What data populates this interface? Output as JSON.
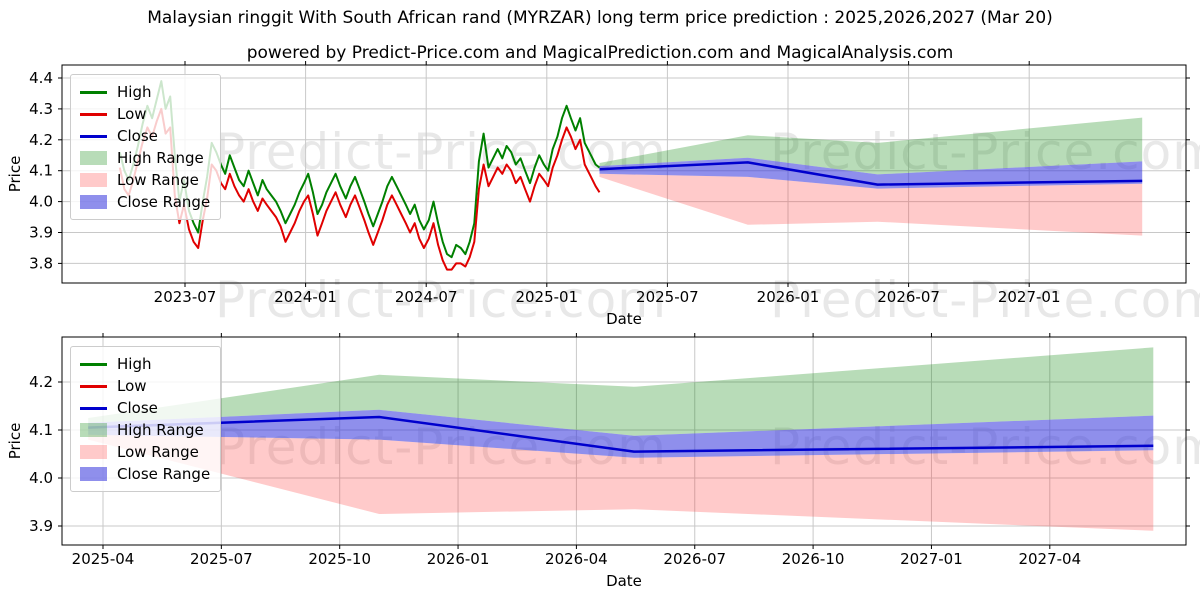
{
  "header": {
    "title": "Malaysian ringgit With South African rand (MYRZAR) long term price prediction : 2025,2026,2027 (Mar 20)",
    "subtitle": "powered by Predict-Price.com and MagicalPrediction.com and MagicalAnalysis.com"
  },
  "watermark": {
    "text": "Predict-Price.com"
  },
  "colors": {
    "high_line": "#008000",
    "low_line": "#e00000",
    "close_line": "#0000cd",
    "high_range_fill": "#008000",
    "high_range_opacity": 0.28,
    "low_range_fill": "#ff2a2a",
    "low_range_opacity": 0.25,
    "close_range_fill": "#3333dd",
    "close_range_opacity": 0.55,
    "grid": "#c8c8c8",
    "frame": "#000000"
  },
  "legend": {
    "items": [
      {
        "label": "High",
        "type": "line",
        "color": "#008000",
        "opacity": 1
      },
      {
        "label": "Low",
        "type": "line",
        "color": "#e00000",
        "opacity": 1
      },
      {
        "label": "Close",
        "type": "line",
        "color": "#0000cd",
        "opacity": 1
      },
      {
        "label": "High Range",
        "type": "patch",
        "color": "#008000",
        "opacity": 0.28
      },
      {
        "label": "Low Range",
        "type": "patch",
        "color": "#ff2a2a",
        "opacity": 0.25
      },
      {
        "label": "Close Range",
        "type": "patch",
        "color": "#3333dd",
        "opacity": 0.55
      }
    ]
  },
  "chart_data": [
    {
      "type": "line",
      "name": "history-and-forecast",
      "xlabel": "Date",
      "ylabel": "Price",
      "yticks": [
        4.4,
        4.3,
        4.2,
        4.1,
        4.0,
        3.9,
        3.8
      ],
      "ylim": [
        3.737,
        4.442
      ],
      "xticks": [
        "2023-07",
        "2024-01",
        "2024-07",
        "2025-01",
        "2025-07",
        "2026-01",
        "2026-07",
        "2027-01"
      ],
      "grid": true,
      "legend_position": "upper left",
      "history": {
        "series": [
          "date",
          "high",
          "low"
        ],
        "rows": [
          [
            "2023-03-24",
            4.16,
            4.11
          ],
          [
            "2023-03-31",
            4.1,
            4.04
          ],
          [
            "2023-04-07",
            4.07,
            4.02
          ],
          [
            "2023-04-14",
            4.12,
            4.07
          ],
          [
            "2023-04-21",
            4.18,
            4.13
          ],
          [
            "2023-04-28",
            4.25,
            4.19
          ],
          [
            "2023-05-05",
            4.31,
            4.24
          ],
          [
            "2023-05-12",
            4.27,
            4.21
          ],
          [
            "2023-05-19",
            4.33,
            4.26
          ],
          [
            "2023-05-26",
            4.39,
            4.3
          ],
          [
            "2023-06-02",
            4.3,
            4.22
          ],
          [
            "2023-06-09",
            4.34,
            4.24
          ],
          [
            "2023-06-16",
            4.15,
            4.02
          ],
          [
            "2023-06-23",
            4.0,
            3.93
          ],
          [
            "2023-06-30",
            4.07,
            3.99
          ],
          [
            "2023-07-07",
            3.97,
            3.91
          ],
          [
            "2023-07-14",
            3.93,
            3.87
          ],
          [
            "2023-07-21",
            3.9,
            3.85
          ],
          [
            "2023-07-28",
            4.0,
            3.94
          ],
          [
            "2023-08-04",
            4.08,
            4.01
          ],
          [
            "2023-08-11",
            4.19,
            4.12
          ],
          [
            "2023-08-18",
            4.16,
            4.1
          ],
          [
            "2023-08-25",
            4.12,
            4.06
          ],
          [
            "2023-09-01",
            4.09,
            4.04
          ],
          [
            "2023-09-08",
            4.15,
            4.09
          ],
          [
            "2023-09-15",
            4.11,
            4.05
          ],
          [
            "2023-09-22",
            4.07,
            4.02
          ],
          [
            "2023-09-29",
            4.05,
            4.0
          ],
          [
            "2023-10-06",
            4.1,
            4.04
          ],
          [
            "2023-10-13",
            4.06,
            4.0
          ],
          [
            "2023-10-20",
            4.02,
            3.97
          ],
          [
            "2023-10-27",
            4.07,
            4.01
          ],
          [
            "2023-11-03",
            4.04,
            3.99
          ],
          [
            "2023-11-10",
            4.02,
            3.97
          ],
          [
            "2023-11-17",
            4.0,
            3.95
          ],
          [
            "2023-11-24",
            3.97,
            3.92
          ],
          [
            "2023-12-01",
            3.93,
            3.87
          ],
          [
            "2023-12-08",
            3.96,
            3.9
          ],
          [
            "2023-12-15",
            3.99,
            3.93
          ],
          [
            "2023-12-22",
            4.03,
            3.97
          ],
          [
            "2023-12-29",
            4.06,
            4.0
          ],
          [
            "2024-01-05",
            4.09,
            4.02
          ],
          [
            "2024-01-12",
            4.03,
            3.96
          ],
          [
            "2024-01-19",
            3.96,
            3.89
          ],
          [
            "2024-01-26",
            3.99,
            3.93
          ],
          [
            "2024-02-02",
            4.03,
            3.97
          ],
          [
            "2024-02-09",
            4.06,
            4.0
          ],
          [
            "2024-02-16",
            4.09,
            4.03
          ],
          [
            "2024-02-23",
            4.05,
            3.99
          ],
          [
            "2024-03-01",
            4.01,
            3.95
          ],
          [
            "2024-03-08",
            4.05,
            3.99
          ],
          [
            "2024-03-15",
            4.08,
            4.02
          ],
          [
            "2024-03-22",
            4.04,
            3.98
          ],
          [
            "2024-03-29",
            4.0,
            3.94
          ],
          [
            "2024-04-05",
            3.96,
            3.9
          ],
          [
            "2024-04-12",
            3.92,
            3.86
          ],
          [
            "2024-04-19",
            3.96,
            3.9
          ],
          [
            "2024-04-26",
            4.0,
            3.94
          ],
          [
            "2024-05-03",
            4.05,
            3.99
          ],
          [
            "2024-05-10",
            4.08,
            4.02
          ],
          [
            "2024-05-17",
            4.05,
            3.99
          ],
          [
            "2024-05-24",
            4.02,
            3.96
          ],
          [
            "2024-05-31",
            3.99,
            3.93
          ],
          [
            "2024-06-07",
            3.96,
            3.9
          ],
          [
            "2024-06-14",
            3.99,
            3.93
          ],
          [
            "2024-06-21",
            3.94,
            3.88
          ],
          [
            "2024-06-28",
            3.91,
            3.85
          ],
          [
            "2024-07-05",
            3.94,
            3.88
          ],
          [
            "2024-07-12",
            4.0,
            3.93
          ],
          [
            "2024-07-19",
            3.93,
            3.86
          ],
          [
            "2024-07-26",
            3.87,
            3.81
          ],
          [
            "2024-08-02",
            3.83,
            3.78
          ],
          [
            "2024-08-09",
            3.82,
            3.78
          ],
          [
            "2024-08-16",
            3.86,
            3.8
          ],
          [
            "2024-08-23",
            3.85,
            3.8
          ],
          [
            "2024-08-30",
            3.83,
            3.79
          ],
          [
            "2024-09-06",
            3.87,
            3.82
          ],
          [
            "2024-09-13",
            3.93,
            3.87
          ],
          [
            "2024-09-20",
            4.13,
            4.04
          ],
          [
            "2024-09-27",
            4.22,
            4.12
          ],
          [
            "2024-10-04",
            4.11,
            4.05
          ],
          [
            "2024-10-11",
            4.14,
            4.08
          ],
          [
            "2024-10-18",
            4.17,
            4.11
          ],
          [
            "2024-10-25",
            4.14,
            4.09
          ],
          [
            "2024-11-01",
            4.18,
            4.12
          ],
          [
            "2024-11-08",
            4.16,
            4.1
          ],
          [
            "2024-11-15",
            4.12,
            4.06
          ],
          [
            "2024-11-22",
            4.14,
            4.08
          ],
          [
            "2024-11-29",
            4.1,
            4.04
          ],
          [
            "2024-12-06",
            4.06,
            4.0
          ],
          [
            "2024-12-13",
            4.11,
            4.05
          ],
          [
            "2024-12-20",
            4.15,
            4.09
          ],
          [
            "2024-12-27",
            4.12,
            4.07
          ],
          [
            "2025-01-03",
            4.1,
            4.05
          ],
          [
            "2025-01-10",
            4.17,
            4.11
          ],
          [
            "2025-01-17",
            4.21,
            4.15
          ],
          [
            "2025-01-24",
            4.27,
            4.2
          ],
          [
            "2025-01-31",
            4.31,
            4.24
          ],
          [
            "2025-02-07",
            4.27,
            4.21
          ],
          [
            "2025-02-14",
            4.23,
            4.17
          ],
          [
            "2025-02-21",
            4.27,
            4.2
          ],
          [
            "2025-02-28",
            4.19,
            4.12
          ],
          [
            "2025-03-07",
            4.15,
            4.08
          ],
          [
            "2025-03-14",
            4.12,
            4.05
          ],
          [
            "2025-03-20",
            4.11,
            4.03
          ]
        ]
      },
      "forecast": {
        "dates": [
          "2025-03-20",
          "2025-11-01",
          "2026-05-15",
          "2027-06-20"
        ],
        "close": [
          4.105,
          4.127,
          4.055,
          4.067
        ],
        "close_upper": [
          4.115,
          4.142,
          4.088,
          4.13
        ],
        "close_lower": [
          4.09,
          4.08,
          4.042,
          4.058
        ],
        "high_upper": [
          4.125,
          4.215,
          4.19,
          4.272
        ],
        "low_lower": [
          4.08,
          3.925,
          3.935,
          3.89
        ]
      }
    },
    {
      "type": "line",
      "name": "forecast-detail",
      "xlabel": "Date",
      "ylabel": "Price",
      "yticks": [
        4.2,
        4.1,
        4.0,
        3.9
      ],
      "ylim": [
        3.86,
        4.294
      ],
      "xticks": [
        "2025-04",
        "2025-07",
        "2025-10",
        "2026-01",
        "2026-04",
        "2026-07",
        "2026-10",
        "2027-01",
        "2027-04"
      ],
      "grid": true,
      "legend_position": "upper left",
      "forecast": {
        "dates": [
          "2025-03-20",
          "2025-11-01",
          "2026-05-15",
          "2027-06-20"
        ],
        "close": [
          4.105,
          4.127,
          4.055,
          4.067
        ],
        "close_upper": [
          4.115,
          4.142,
          4.088,
          4.13
        ],
        "close_lower": [
          4.09,
          4.08,
          4.042,
          4.058
        ],
        "high_upper": [
          4.125,
          4.215,
          4.19,
          4.272
        ],
        "low_lower": [
          4.08,
          3.925,
          3.935,
          3.89
        ]
      }
    }
  ]
}
